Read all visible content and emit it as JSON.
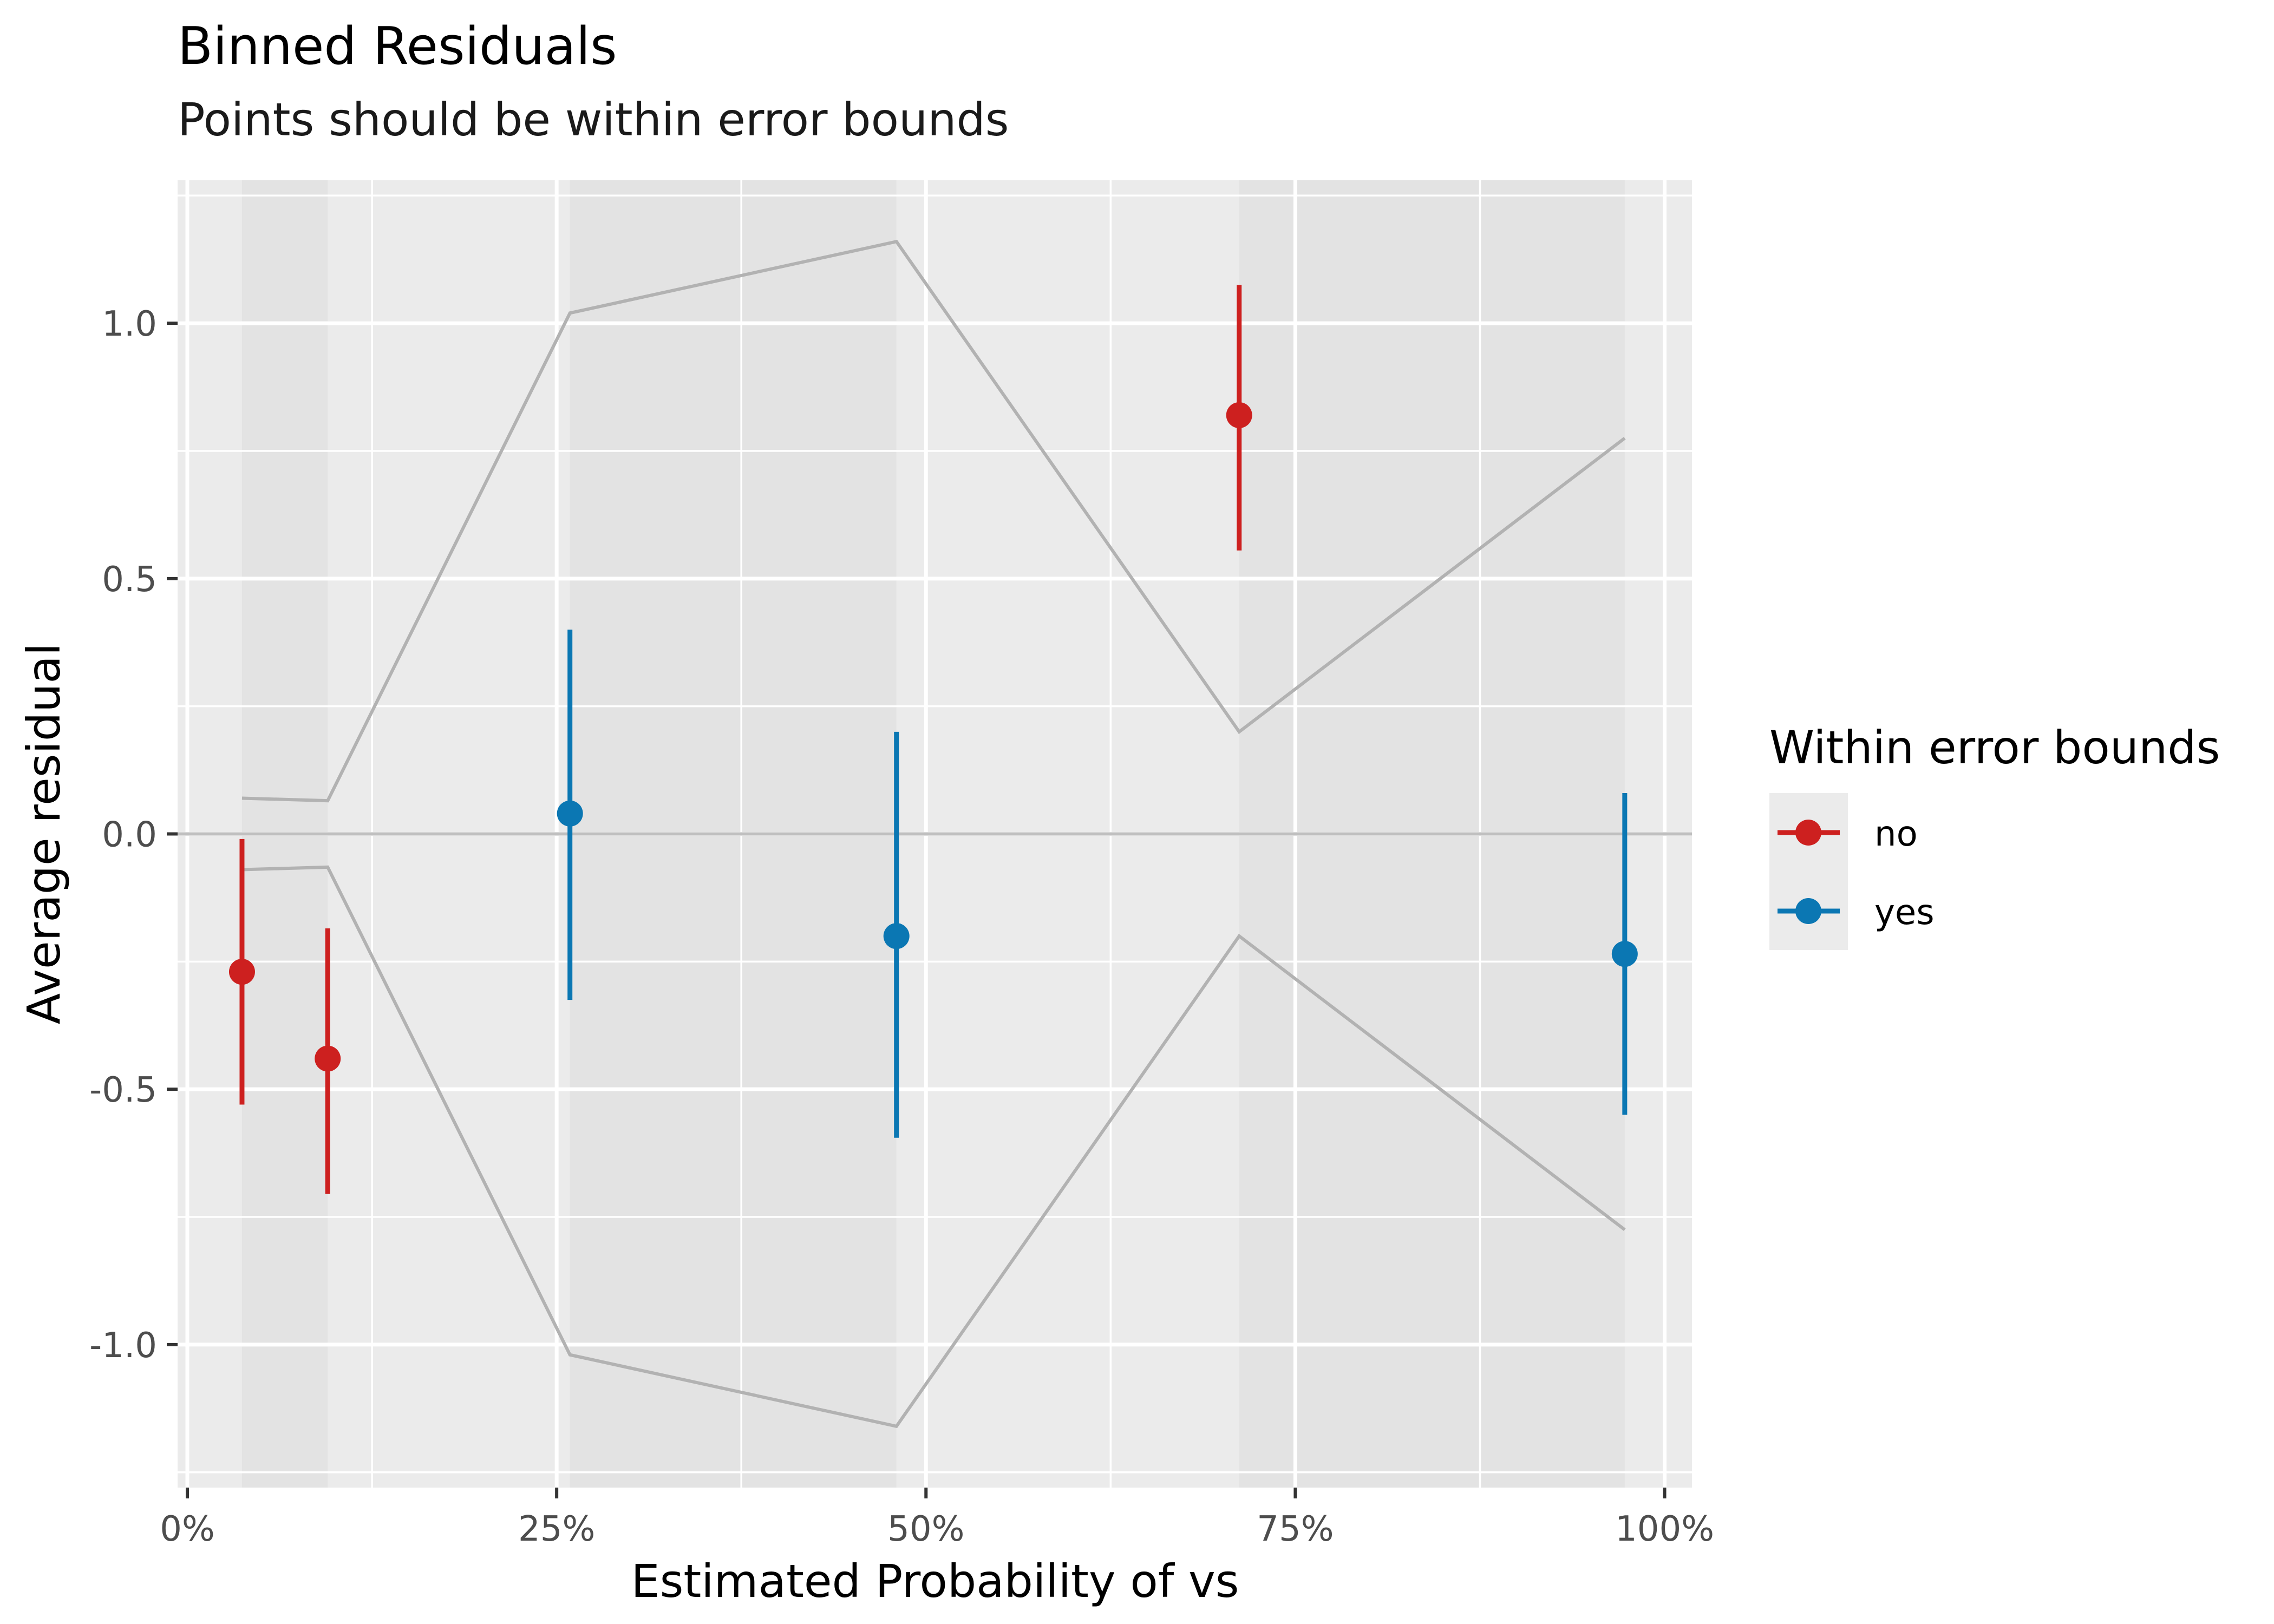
{
  "chart_data": {
    "type": "scatter",
    "title": "Binned Residuals",
    "subtitle": "Points should be within error bounds",
    "xlabel": "Estimated Probability of vs",
    "ylabel": "Average residual",
    "xlim": [
      -0.0066,
      1.0185
    ],
    "ylim": [
      -1.28,
      1.28
    ],
    "x_ticks": [
      {
        "value": 0,
        "label": "0%"
      },
      {
        "value": 0.25,
        "label": "25%"
      },
      {
        "value": 0.5,
        "label": "50%"
      },
      {
        "value": 0.75,
        "label": "75%"
      },
      {
        "value": 1,
        "label": "100%"
      }
    ],
    "y_ticks": [
      {
        "value": -1,
        "label": "-1.0"
      },
      {
        "value": -0.5,
        "label": "-0.5"
      },
      {
        "value": 0,
        "label": "0.0"
      },
      {
        "value": 0.5,
        "label": "0.5"
      },
      {
        "value": 1,
        "label": "1.0"
      }
    ],
    "bins": [
      {
        "x": 0.037,
        "y": -0.27,
        "ymin": -0.53,
        "ymax": -0.01,
        "bound": 0.07,
        "within": "no"
      },
      {
        "x": 0.095,
        "y": -0.44,
        "ymin": -0.705,
        "ymax": -0.185,
        "bound": 0.065,
        "within": "no"
      },
      {
        "x": 0.259,
        "y": 0.04,
        "ymin": -0.325,
        "ymax": 0.4,
        "bound": 1.02,
        "within": "yes"
      },
      {
        "x": 0.48,
        "y": -0.2,
        "ymin": -0.595,
        "ymax": 0.2,
        "bound": 1.16,
        "within": "yes"
      },
      {
        "x": 0.712,
        "y": 0.82,
        "ymin": 0.555,
        "ymax": 1.075,
        "bound": 0.2,
        "within": "no"
      },
      {
        "x": 0.973,
        "y": -0.235,
        "ymin": -0.55,
        "ymax": 0.08,
        "bound": 0.775,
        "within": "yes"
      }
    ],
    "legend": {
      "title": "Within error bounds",
      "position": "right",
      "items": [
        {
          "label": "no",
          "color": "#cd201f"
        },
        {
          "label": "yes",
          "color": "#0b77b3"
        }
      ]
    },
    "colors": {
      "panel": "#ebebeb",
      "band": "#e3e3e3",
      "grid": "#ffffff",
      "bound_line": "#b2b2b2",
      "zero_line": "#bfbfbf"
    },
    "grid": true
  }
}
